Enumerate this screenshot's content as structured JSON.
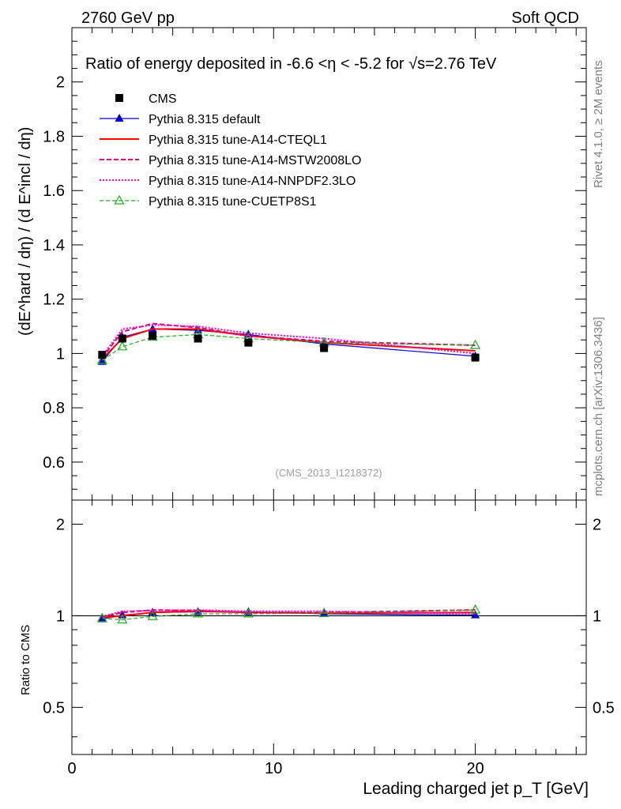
{
  "header": {
    "left": "2760 GeV pp",
    "right": "Soft QCD"
  },
  "side_labels": {
    "rivet": "Rivet 4.1.0, ≥ 2M events",
    "mcplots": "mcplots.cern.ch [arXiv:1306.3436]"
  },
  "watermark": "(CMS_2013_I1218372)",
  "colors": {
    "data": "#000000",
    "default": "#0000cc",
    "a14cteql": "#ff0000",
    "a14mstw": "#e0007f",
    "a14nnpdf": "#ff00cc",
    "cuetp8s1": "#22aa22"
  },
  "chart_data": [
    {
      "type": "line",
      "title": "Ratio of energy deposited in -6.6 <η < -5.2 for √s=2.76 TeV",
      "ylabel": "(dE^hard / dη) / (d E^incl / dη)",
      "xlabel": "",
      "xlim": [
        0,
        25.5
      ],
      "ylim": [
        0.46,
        2.2
      ],
      "yticks": [
        0.6,
        0.8,
        1,
        1.2,
        1.4,
        1.6,
        1.8,
        2
      ],
      "ytick_labels": [
        "0.6",
        "0.8",
        "1",
        "1.2",
        "1.4",
        "1.6",
        "1.8",
        "2"
      ],
      "x": [
        1.5,
        2.5,
        4.0,
        6.25,
        8.75,
        12.5,
        20.0
      ],
      "series": [
        {
          "key": "cms",
          "name": "CMS",
          "values": [
            0.995,
            1.055,
            1.065,
            1.055,
            1.04,
            1.02,
            0.985
          ],
          "errors": [
            0.01,
            0.01,
            0.01,
            0.01,
            0.01,
            0.01,
            0.015
          ]
        },
        {
          "key": "default",
          "name": "Pythia 8.315 default",
          "values": [
            0.97,
            1.06,
            1.09,
            1.085,
            1.07,
            1.035,
            0.99
          ]
        },
        {
          "key": "a14cteql",
          "name": "Pythia 8.315 tune-A14-CTEQL1",
          "values": [
            0.98,
            1.055,
            1.09,
            1.09,
            1.065,
            1.04,
            1.01
          ]
        },
        {
          "key": "a14mstw",
          "name": "Pythia 8.315 tune-A14-MSTW2008LO",
          "values": [
            0.985,
            1.08,
            1.11,
            1.095,
            1.065,
            1.045,
            1.03
          ]
        },
        {
          "key": "a14nnpdf",
          "name": "Pythia 8.315 tune-A14-NNPDF2.3LO",
          "values": [
            0.99,
            1.09,
            1.105,
            1.1,
            1.075,
            1.055,
            1.0
          ]
        },
        {
          "key": "cuetp8s1",
          "name": "Pythia 8.315 tune-CUETP8S1",
          "values": [
            0.975,
            1.025,
            1.06,
            1.07,
            1.055,
            1.04,
            1.03
          ]
        }
      ],
      "legend": "top-left"
    },
    {
      "type": "line",
      "title": "",
      "ylabel": "Ratio to CMS",
      "xlabel": "Leading charged jet p_T [GeV]",
      "xlim": [
        0,
        25.5
      ],
      "ylim": [
        0.35,
        2.4
      ],
      "yscale": "log",
      "yticks": [
        0.5,
        1,
        2
      ],
      "ytick_labels": [
        "0.5",
        "1",
        "2"
      ],
      "xticks": [
        0,
        10,
        20
      ],
      "xtick_labels": [
        "0",
        "10",
        "20"
      ],
      "x": [
        1.5,
        2.5,
        4.0,
        6.25,
        8.75,
        12.5,
        20.0
      ],
      "series": [
        {
          "key": "cms",
          "name": "CMS",
          "values": [
            1,
            1,
            1,
            1,
            1,
            1,
            1
          ]
        },
        {
          "key": "default",
          "name": "Pythia 8.315 default",
          "values": [
            0.975,
            1.005,
            1.025,
            1.03,
            1.03,
            1.015,
            1.005
          ]
        },
        {
          "key": "a14cteql",
          "name": "Pythia 8.315 tune-A14-CTEQL1",
          "values": [
            0.985,
            1.0,
            1.025,
            1.035,
            1.025,
            1.02,
            1.025
          ]
        },
        {
          "key": "a14mstw",
          "name": "Pythia 8.315 tune-A14-MSTW2008LO",
          "values": [
            0.99,
            1.025,
            1.045,
            1.04,
            1.025,
            1.025,
            1.045
          ]
        },
        {
          "key": "a14nnpdf",
          "name": "Pythia 8.315 tune-A14-NNPDF2.3LO",
          "values": [
            0.995,
            1.035,
            1.04,
            1.045,
            1.035,
            1.035,
            1.015
          ]
        },
        {
          "key": "cuetp8s1",
          "name": "Pythia 8.315 tune-CUETP8S1",
          "values": [
            0.98,
            0.97,
            0.995,
            1.015,
            1.015,
            1.02,
            1.045
          ]
        }
      ]
    }
  ]
}
